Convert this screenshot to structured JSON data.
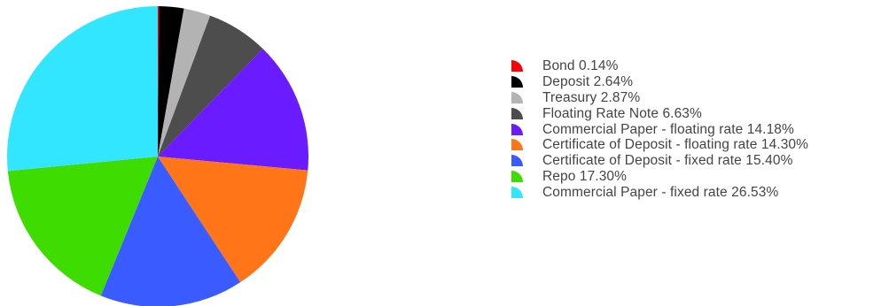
{
  "chart_data": {
    "type": "pie",
    "legend_position": "right",
    "series": [
      {
        "name": "Bond",
        "value": 0.14,
        "label": "Bond 0.14%",
        "color": "#ff0000"
      },
      {
        "name": "Deposit",
        "value": 2.64,
        "label": "Deposit 2.64%",
        "color": "#000000"
      },
      {
        "name": "Treasury",
        "value": 2.87,
        "label": "Treasury 2.87%",
        "color": "#b3b3b3"
      },
      {
        "name": "Floating Rate Note",
        "value": 6.63,
        "label": "Floating Rate Note 6.63%",
        "color": "#4d4d4d"
      },
      {
        "name": "Commercial Paper - floating rate",
        "value": 14.18,
        "label": "Commercial Paper - floating rate 14.18%",
        "color": "#6a1bff"
      },
      {
        "name": "Certificate of Deposit - floating rate",
        "value": 14.3,
        "label": "Certificate of Deposit - floating rate 14.30%",
        "color": "#ff7518"
      },
      {
        "name": "Certificate of Deposit - fixed rate",
        "value": 15.4,
        "label": "Certificate of Deposit - fixed rate 15.40%",
        "color": "#3a5bff"
      },
      {
        "name": "Repo",
        "value": 17.3,
        "label": "Repo 17.30%",
        "color": "#3fdc00"
      },
      {
        "name": "Commercial Paper - fixed rate",
        "value": 26.53,
        "label": "Commercial Paper - fixed rate 26.53%",
        "color": "#33e6ff"
      }
    ]
  }
}
